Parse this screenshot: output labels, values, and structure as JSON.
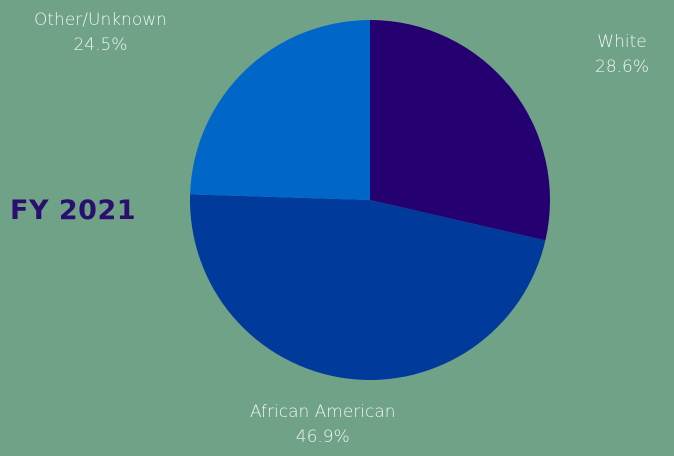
{
  "page": {
    "background": "#6FA287",
    "label_color": "#EEF4F0",
    "title_color": "#2A0F6E"
  },
  "title": "FY 2021",
  "chart_data": {
    "type": "pie",
    "start_angle_deg": 0,
    "direction": "clockwise",
    "slices": [
      {
        "label": "White",
        "value": 28.6,
        "display": "28.6%",
        "color": "#240070"
      },
      {
        "label": "African American",
        "value": 46.9,
        "display": "46.9%",
        "color": "#003A9B"
      },
      {
        "label": "Other/Unknown",
        "value": 24.5,
        "display": "24.5%",
        "color": "#0066C8"
      }
    ]
  }
}
